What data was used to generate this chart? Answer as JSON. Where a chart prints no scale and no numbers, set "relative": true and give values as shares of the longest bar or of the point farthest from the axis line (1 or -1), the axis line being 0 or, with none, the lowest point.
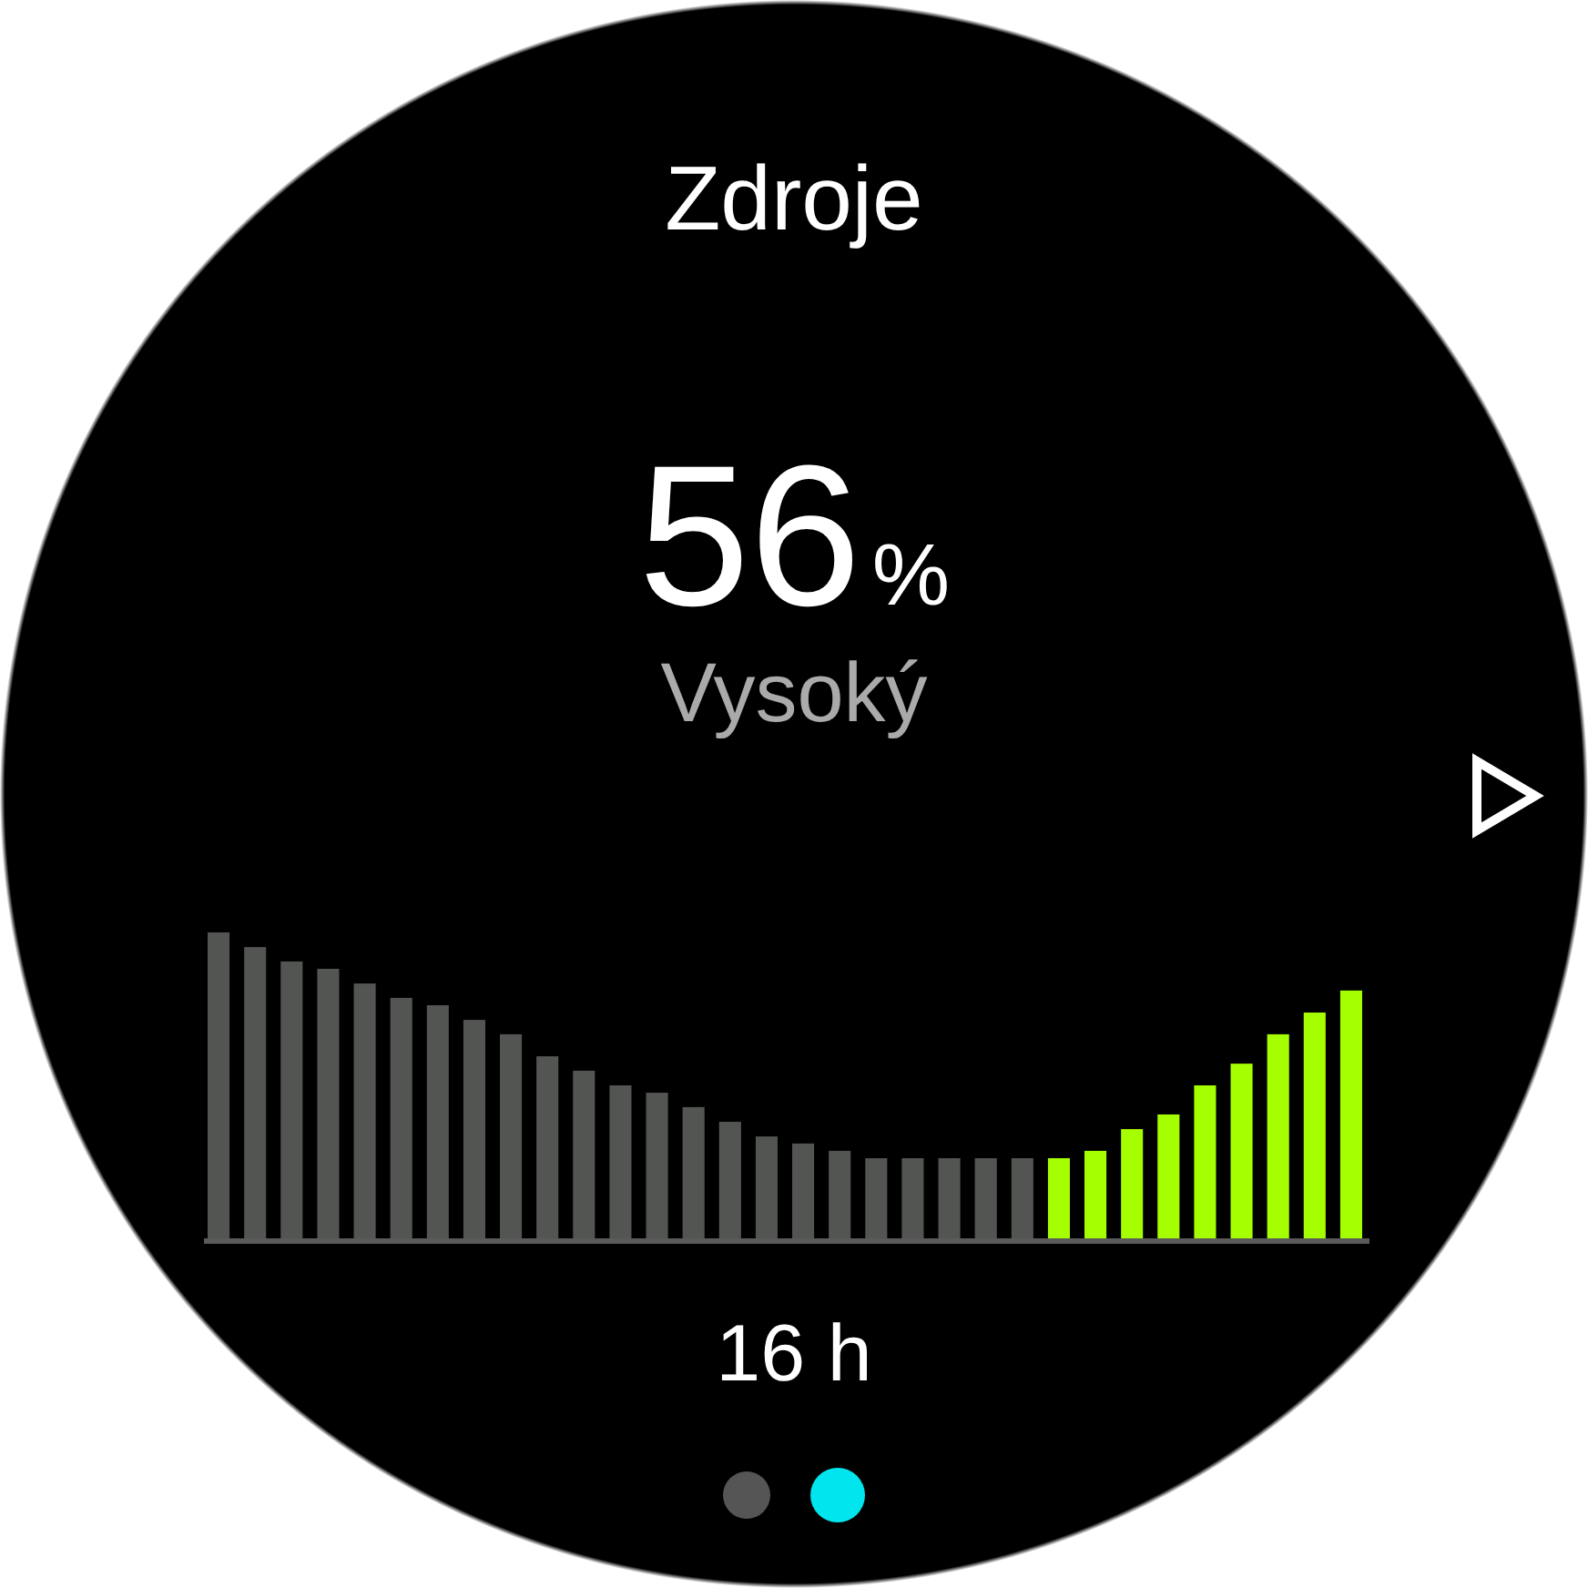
{
  "chart_data": {
    "type": "bar",
    "title": "Zdroje",
    "xlabel": "16 h",
    "relative": true,
    "annotations": [
      "56%",
      "Vysoký"
    ],
    "categories": [
      null,
      null,
      null,
      null,
      null,
      null,
      null,
      null,
      null,
      null,
      null,
      null,
      null,
      null,
      null,
      null,
      null,
      null,
      null,
      null,
      null,
      null,
      null,
      null,
      null,
      null,
      null,
      null,
      null,
      null,
      null,
      null
    ],
    "values": [
      1,
      0.952,
      0.905,
      0.881,
      0.833,
      0.786,
      0.762,
      0.714,
      0.667,
      0.595,
      0.548,
      0.5,
      0.476,
      0.429,
      0.381,
      0.333,
      0.31,
      0.286,
      0.262,
      0.262,
      0.262,
      0.262,
      0.262,
      0.262,
      0.286,
      0.357,
      0.405,
      0.5,
      0.571,
      0.667,
      0.738,
      0.81
    ],
    "colors": [
      "#535553",
      "#535553",
      "#535553",
      "#535553",
      "#535553",
      "#535553",
      "#535553",
      "#535553",
      "#535553",
      "#535553",
      "#535553",
      "#535553",
      "#535553",
      "#535553",
      "#535553",
      "#535553",
      "#535553",
      "#535553",
      "#535553",
      "#535553",
      "#535553",
      "#535553",
      "#535553",
      "#a6ff00",
      "#a6ff00",
      "#a6ff00",
      "#a6ff00",
      "#a6ff00",
      "#a6ff00",
      "#a6ff00",
      "#a6ff00",
      "#a6ff00"
    ]
  }
}
